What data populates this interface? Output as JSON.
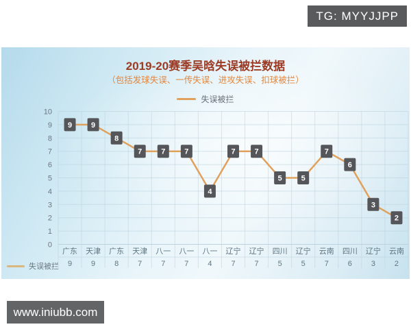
{
  "badges": {
    "tg": "TG: MYYJJPP",
    "site": "www.iniubb.com"
  },
  "chart_data": {
    "type": "line",
    "title": "2019-20赛季吴晗失误被拦数据",
    "subtitle": "（包括发球失误、一传失误、进攻失误、扣球被拦）",
    "legend": "失误被拦",
    "categories": [
      "广东",
      "天津",
      "广东",
      "天津",
      "八一",
      "八一",
      "八一",
      "辽宁",
      "辽宁",
      "四川",
      "辽宁",
      "云南",
      "四川",
      "辽宁",
      "云南"
    ],
    "values": [
      9,
      9,
      8,
      7,
      7,
      7,
      4,
      7,
      7,
      5,
      5,
      7,
      6,
      3,
      2
    ],
    "ylim": [
      0,
      10
    ],
    "y_ticks": [
      0,
      1,
      2,
      3,
      4,
      5,
      6,
      7,
      8,
      9,
      10
    ],
    "grid": true,
    "legend_position": "top",
    "value_table_shown": true,
    "colors": {
      "line": "#dfa15c",
      "marker_bg": "#55565a",
      "marker_text": "#ffffff",
      "grid": "#b7d0dd",
      "axis_text": "#6b7780",
      "title": "#9c3a23",
      "subtitle": "#e2873e"
    }
  }
}
